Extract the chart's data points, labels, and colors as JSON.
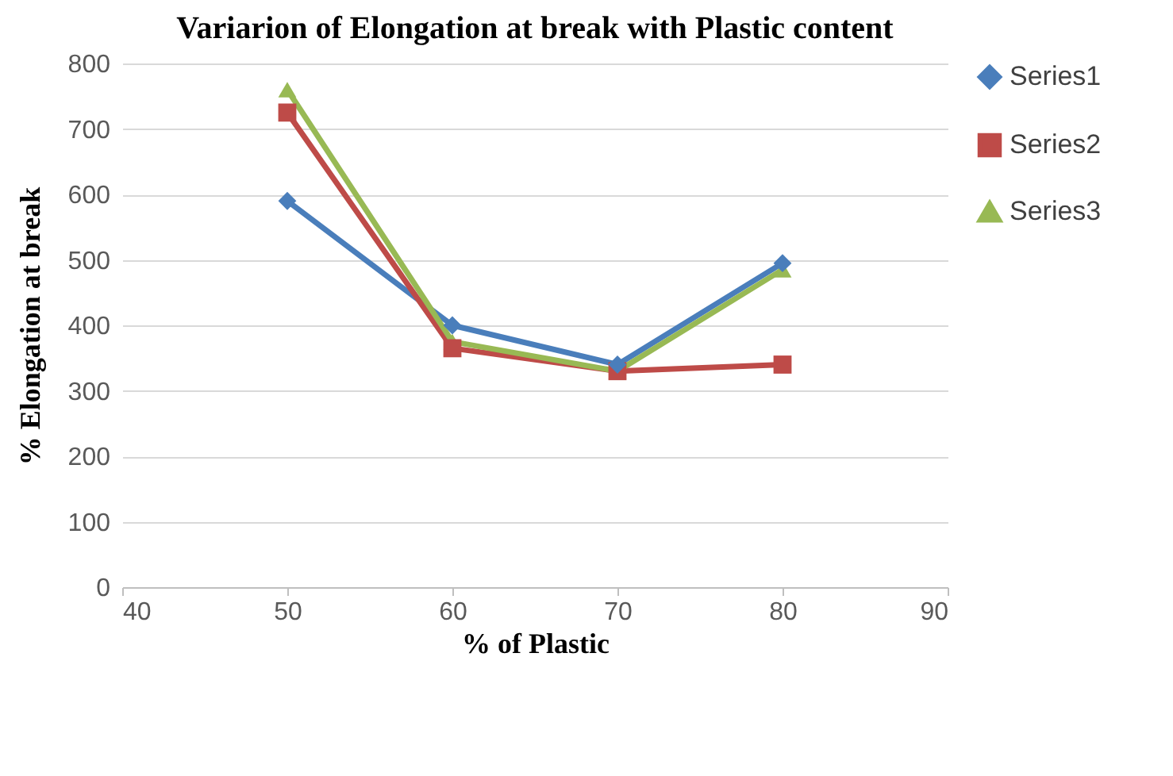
{
  "chart_data": {
    "type": "line",
    "title": "Variarion of Elongation at break with Plastic content",
    "xlabel": "% of Plastic",
    "ylabel": "% Elongation at break",
    "x": [
      50,
      60,
      70,
      80
    ],
    "series": [
      {
        "name": "Series1",
        "color": "#4a7ebb",
        "marker": "diamond",
        "values": [
          590,
          400,
          340,
          495
        ]
      },
      {
        "name": "Series2",
        "color": "#be4b48",
        "marker": "square",
        "values": [
          725,
          365,
          330,
          340
        ]
      },
      {
        "name": "Series3",
        "color": "#98b954",
        "marker": "triangle",
        "values": [
          760,
          375,
          330,
          485
        ]
      }
    ],
    "xlim": [
      40,
      90
    ],
    "xticks": [
      40,
      50,
      60,
      70,
      80,
      90
    ],
    "ylim": [
      0,
      800
    ],
    "yticks": [
      0,
      100,
      200,
      300,
      400,
      500,
      600,
      700,
      800
    ],
    "grid": "y",
    "legend": "right",
    "line_style": "solid"
  }
}
